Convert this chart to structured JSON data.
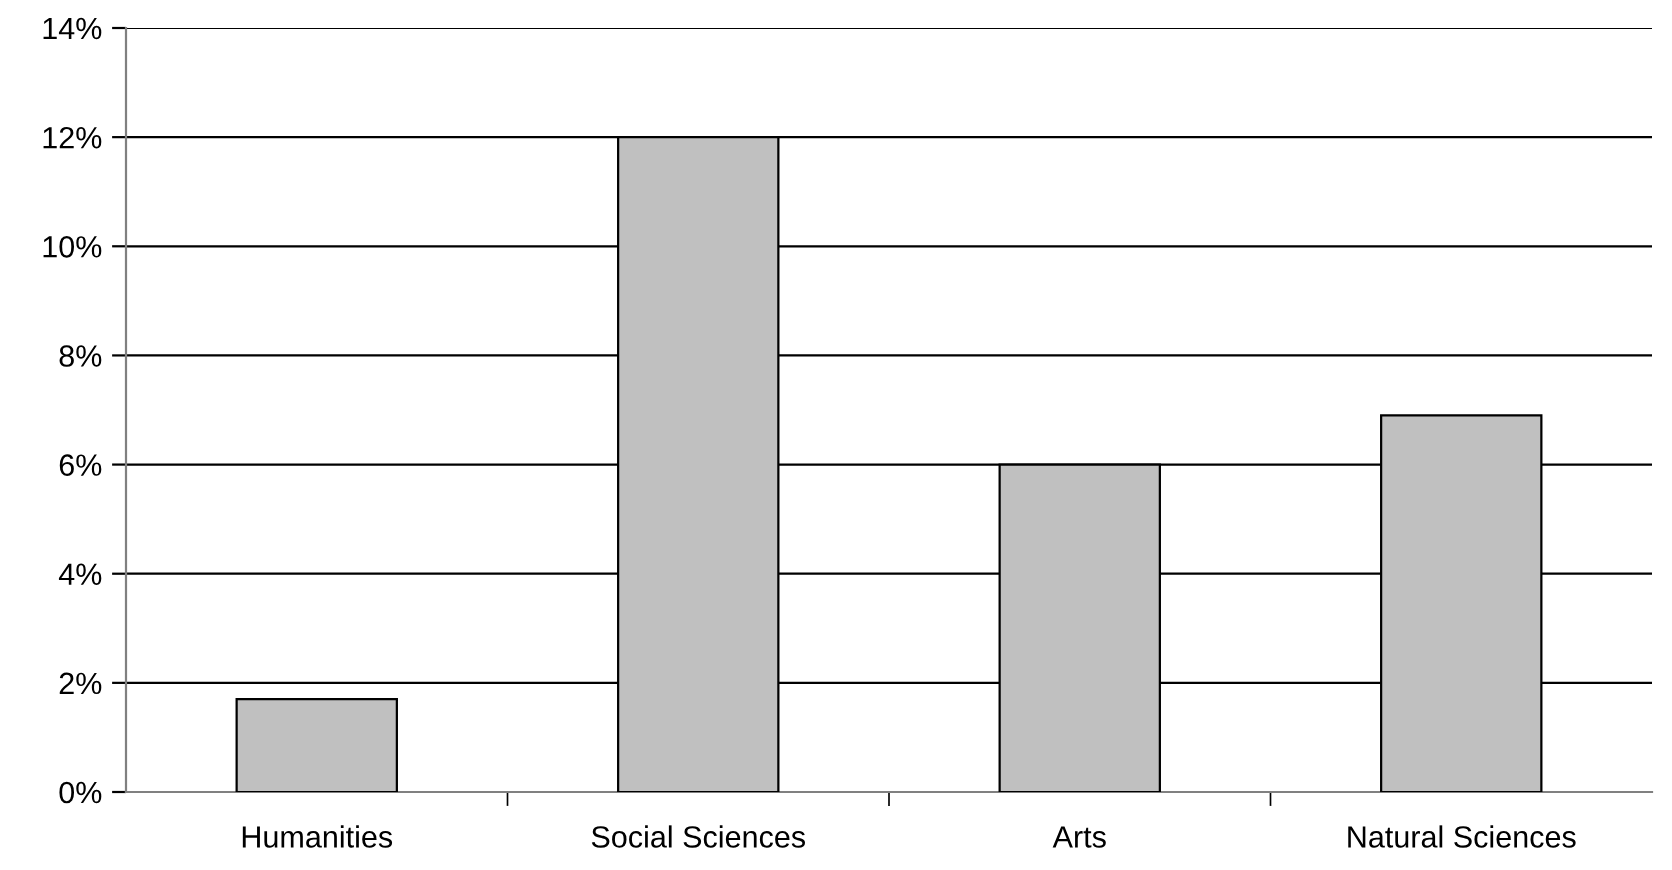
{
  "chart_data": {
    "type": "bar",
    "categories": [
      "Humanities",
      "Social Sciences",
      "Arts",
      "Natural Sciences"
    ],
    "values": [
      1.7,
      12,
      6,
      6.9
    ],
    "color": "#c0c0c0",
    "ylim": [
      0,
      14
    ],
    "yticks": [
      {
        "value": 0,
        "label": "0%"
      },
      {
        "value": 2,
        "label": "2%"
      },
      {
        "value": 4,
        "label": "4%"
      },
      {
        "value": 6,
        "label": "6%"
      },
      {
        "value": 8,
        "label": "8%"
      },
      {
        "value": 10,
        "label": "10%"
      },
      {
        "value": 12,
        "label": "12%"
      },
      {
        "value": 14,
        "label": "14%"
      }
    ],
    "grid": "y",
    "legend": false
  }
}
